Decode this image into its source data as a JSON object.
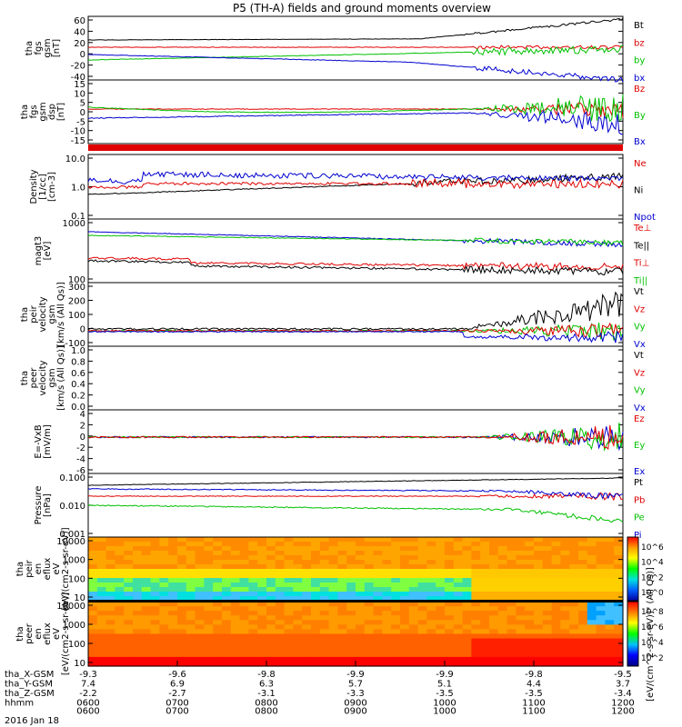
{
  "chart_data": {
    "type": "line",
    "title": "P5 (TH-A) fields and ground moments overview",
    "date_label": "2016 Jan 18",
    "x_ticks": [
      "0600",
      "0700",
      "0800",
      "0900",
      "1000",
      "1100",
      "1200"
    ],
    "ephemeris": [
      {
        "label": "tha_X-GSM",
        "values": [
          "-9.3",
          "-9.6",
          "-9.8",
          "-9.9",
          "-9.9",
          "-9.8",
          "-9.5"
        ]
      },
      {
        "label": "tha_Y-GSM",
        "values": [
          "7.4",
          "6.9",
          "6.3",
          "5.7",
          "5.1",
          "4.4",
          "3.7"
        ]
      },
      {
        "label": "tha_Z-GSM",
        "values": [
          "-2.2",
          "-2.7",
          "-3.1",
          "-3.3",
          "-3.5",
          "-3.5",
          "-3.4"
        ]
      },
      {
        "label": "hhmm",
        "values": [
          "0600",
          "0700",
          "0800",
          "0900",
          "1000",
          "1100",
          "1200"
        ]
      }
    ],
    "panels": [
      {
        "ylabel": [
          "tha",
          "fgs",
          "gsm",
          "[nT]"
        ],
        "yticks": [
          "60",
          "40",
          "20",
          "0",
          "-20",
          "-40"
        ],
        "legend": [
          {
            "name": "Bt",
            "color": "#000000"
          },
          {
            "name": "bz",
            "color": "#e00000"
          },
          {
            "name": "by",
            "color": "#00c000"
          },
          {
            "name": "bx",
            "color": "#0000d0"
          }
        ]
      },
      {
        "ylabel": [
          "tha",
          "fgs",
          "gsm",
          "dsp",
          "[nT]"
        ],
        "yticks": [
          "15",
          "10",
          "5",
          "0",
          "-5",
          "-10",
          "-15"
        ],
        "legend": [
          {
            "name": "Bz",
            "color": "#e00000"
          },
          {
            "name": "By",
            "color": "#00c000"
          },
          {
            "name": "Bx",
            "color": "#0000d0"
          }
        ]
      },
      {
        "ylabel": [
          "Density",
          "[1/cc]",
          "[cm-3]"
        ],
        "yticks": [
          "10.0",
          "1.0",
          "0.1"
        ],
        "legend": [
          {
            "name": "Ne",
            "color": "#e00000"
          },
          {
            "name": "Ni",
            "color": "#000000"
          },
          {
            "name": "Npot",
            "color": "#0000d0"
          }
        ]
      },
      {
        "ylabel": [
          "magt3",
          "[eV]"
        ],
        "yticks": [
          "1000",
          "100"
        ],
        "legend": [
          {
            "name": "Te⊥",
            "color": "#e00000"
          },
          {
            "name": "Te||",
            "color": "#000000"
          },
          {
            "name": "Ti⊥",
            "color": "#e00000"
          },
          {
            "name": "Ti||",
            "color": "#00c000"
          }
        ]
      },
      {
        "ylabel": [
          "tha",
          "peir",
          "velocity",
          "gsm",
          "[km/s (All Qs)]"
        ],
        "yticks": [
          "300",
          "200",
          "100",
          "0",
          "-100"
        ],
        "legend": [
          {
            "name": "Vt",
            "color": "#000000"
          },
          {
            "name": "Vz",
            "color": "#e00000"
          },
          {
            "name": "Vy",
            "color": "#00c000"
          },
          {
            "name": "Vx",
            "color": "#0000d0"
          }
        ]
      },
      {
        "ylabel": [
          "tha",
          "peer",
          "velocity",
          "gsm",
          "[km/s (All Qs)]"
        ],
        "yticks": [
          "1.0",
          "0.8",
          "0.6",
          "0.4",
          "0.2",
          "0.0"
        ],
        "legend": [
          {
            "name": "Vt",
            "color": "#000000"
          },
          {
            "name": "Vz",
            "color": "#e00000"
          },
          {
            "name": "Vy",
            "color": "#00c000"
          },
          {
            "name": "Vx",
            "color": "#0000d0"
          }
        ]
      },
      {
        "ylabel": [
          "E=-VxB",
          "[mV/m]"
        ],
        "yticks": [
          "4",
          "2",
          "0",
          "-2",
          "-4",
          "-6"
        ],
        "legend": [
          {
            "name": "Ez",
            "color": "#e00000"
          },
          {
            "name": "Ey",
            "color": "#00c000"
          },
          {
            "name": "Ex",
            "color": "#0000d0"
          }
        ]
      },
      {
        "ylabel": [
          "Pressure",
          "[nPa]"
        ],
        "yticks": [
          "0.100",
          "0.010",
          "0.001"
        ],
        "legend": [
          {
            "name": "Pt",
            "color": "#000000"
          },
          {
            "name": "Pb",
            "color": "#e00000"
          },
          {
            "name": "Pe",
            "color": "#00c000"
          },
          {
            "name": "Pi",
            "color": "#0000d0"
          }
        ]
      },
      {
        "ylabel": [
          "tha",
          "peir",
          "en",
          "eflux",
          "eV",
          "[eV/(cm2-s-sr-eV)]"
        ],
        "yticks": [
          "10000",
          "1000",
          "100",
          "10"
        ],
        "colorbar_ticks": [
          "10^6",
          "10^4",
          "10^2",
          "10^0"
        ]
      },
      {
        "ylabel": [
          "tha",
          "peer",
          "en",
          "eflux",
          "eV",
          "[eV/(cm2-s-sr-eV)]"
        ],
        "yticks": [
          "10000",
          "1000",
          "100",
          "10"
        ],
        "colorbar_ticks": [
          "10^8",
          "10^6",
          "10^4",
          "10^2"
        ]
      }
    ],
    "colorbar_label": "[eV/(cm^2-s-sr-eV)]\" (All Qs)]"
  }
}
